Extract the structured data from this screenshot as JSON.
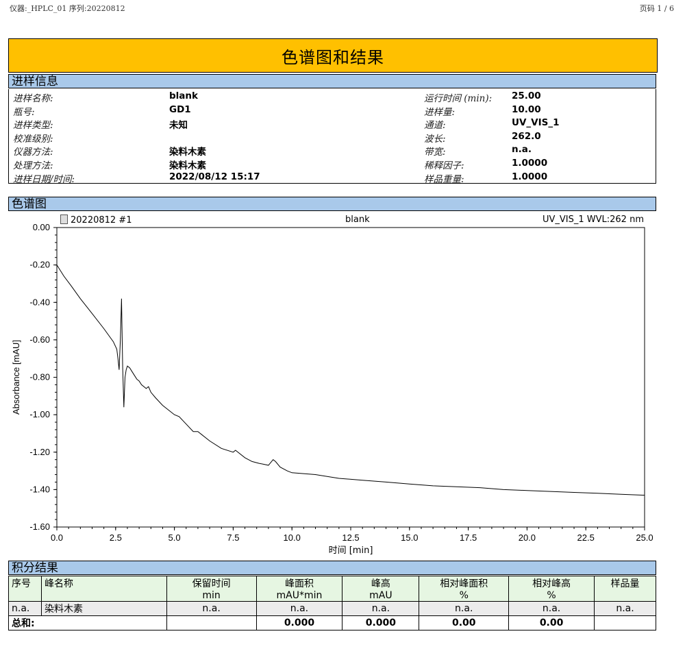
{
  "header": {
    "left": "仪器:_HPLC_01   序列:20220812",
    "right": "页码 1 / 6"
  },
  "title": "色谱图和结果",
  "sections": {
    "info": "进样信息",
    "chromatogram": "色谱图",
    "integration": "积分结果"
  },
  "info_rows": [
    {
      "label": "进样名称:",
      "value": "blank",
      "label2": "运行时间 (min):",
      "value2": "25.00"
    },
    {
      "label": "瓶号:",
      "value": "GD1",
      "label2": "进样量:",
      "value2": "10.00"
    },
    {
      "label": "进样类型:",
      "value": "未知",
      "label2": "通道:",
      "value2": "UV_VIS_1"
    },
    {
      "label": "校准级别:",
      "value": "",
      "label2": "波长:",
      "value2": "262.0"
    },
    {
      "label": "仪器方法:",
      "value": "染料木素",
      "label2": "带宽:",
      "value2": "n.a."
    },
    {
      "label": "处理方法:",
      "value": "染料木素",
      "label2": "稀释因子:",
      "value2": "1.0000"
    },
    {
      "label": "进样日期/时间:",
      "value": "2022/08/12 15:17",
      "label2": "样品重量:",
      "value2": "1.0000"
    }
  ],
  "chart_caption": {
    "left": "20220812 #1",
    "center": "blank",
    "right": "UV_VIS_1 WVL:262 nm"
  },
  "chart_data": {
    "type": "line",
    "xlabel": "时间 [min]",
    "ylabel": "Absorbance [mAU]",
    "xlim": [
      0,
      25
    ],
    "ylim": [
      -1.6,
      0
    ],
    "x_ticks": [
      "0.0",
      "2.5",
      "5.0",
      "7.5",
      "10.0",
      "12.5",
      "15.0",
      "17.5",
      "20.0",
      "22.5",
      "25.0"
    ],
    "y_ticks": [
      "0.00",
      "-0.20",
      "-0.40",
      "-0.60",
      "-0.80",
      "-1.00",
      "-1.20",
      "-1.40",
      "-1.60"
    ],
    "grid": false,
    "series": [
      {
        "x": [
          0.0,
          0.3,
          0.6,
          1.0,
          1.5,
          2.0,
          2.4,
          2.55,
          2.6,
          2.65,
          2.7,
          2.75,
          2.8,
          2.85,
          2.9,
          2.95,
          3.0,
          3.1,
          3.2,
          3.3,
          3.4,
          3.5,
          3.6,
          3.8,
          3.9,
          4.0,
          4.2,
          4.5,
          5.0,
          5.2,
          5.5,
          5.8,
          6.0,
          6.2,
          6.5,
          7.0,
          7.5,
          7.6,
          8.0,
          8.3,
          8.6,
          9.0,
          9.2,
          9.3,
          9.5,
          9.8,
          10.0,
          11.0,
          12.0,
          13.0,
          14.0,
          15.0,
          16.0,
          17.0,
          18.0,
          19.0,
          20.0,
          21.0,
          22.0,
          23.0,
          24.0,
          25.0
        ],
        "y": [
          -0.2,
          -0.26,
          -0.31,
          -0.38,
          -0.46,
          -0.54,
          -0.61,
          -0.65,
          -0.7,
          -0.76,
          -0.6,
          -0.38,
          -0.75,
          -0.96,
          -0.8,
          -0.76,
          -0.74,
          -0.75,
          -0.77,
          -0.79,
          -0.81,
          -0.82,
          -0.84,
          -0.86,
          -0.85,
          -0.88,
          -0.91,
          -0.95,
          -1.0,
          -1.01,
          -1.05,
          -1.09,
          -1.09,
          -1.11,
          -1.14,
          -1.18,
          -1.2,
          -1.19,
          -1.23,
          -1.25,
          -1.26,
          -1.27,
          -1.24,
          -1.25,
          -1.28,
          -1.3,
          -1.31,
          -1.32,
          -1.34,
          -1.35,
          -1.36,
          -1.37,
          -1.38,
          -1.385,
          -1.39,
          -1.4,
          -1.405,
          -1.41,
          -1.415,
          -1.42,
          -1.425,
          -1.43
        ]
      }
    ]
  },
  "results": {
    "headers": [
      {
        "line1": "序号",
        "line2": ""
      },
      {
        "line1": "峰名称",
        "line2": ""
      },
      {
        "line1": "保留时间",
        "line2": "min"
      },
      {
        "line1": "峰面积",
        "line2": "mAU*min"
      },
      {
        "line1": "峰高",
        "line2": "mAU"
      },
      {
        "line1": "相对峰面积",
        "line2": "%"
      },
      {
        "line1": "相对峰高",
        "line2": "%"
      },
      {
        "line1": "样品量",
        "line2": ""
      }
    ],
    "row": [
      "n.a.",
      "染料木素",
      "n.a.",
      "n.a.",
      "n.a.",
      "n.a.",
      "n.a.",
      "n.a."
    ],
    "sum": {
      "label": "总和:",
      "area": "0.000",
      "height": "0.000",
      "rel_area": "0.00",
      "rel_height": "0.00"
    }
  }
}
